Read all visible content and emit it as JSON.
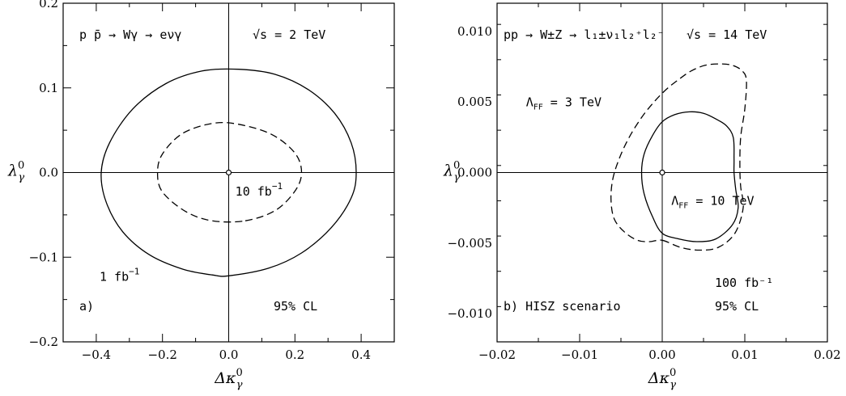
{
  "chart_data": [
    {
      "type": "line",
      "panel_label": "a)",
      "process": "p p̄ → Wγ → eνγ",
      "energy": "√s = 2 TeV",
      "confidence": "95% CL",
      "xlabel": "Δκ",
      "xlabel_sup": "0",
      "xlabel_sub": "γ",
      "ylabel": "λ",
      "ylabel_sup": "0",
      "ylabel_sub": "γ",
      "xlim": [
        -0.5,
        0.5
      ],
      "ylim": [
        -0.2,
        0.2
      ],
      "xticks": [
        "−0.4",
        "−0.2",
        "0.0",
        "0.2",
        "0.4"
      ],
      "xtick_values": [
        -0.4,
        -0.2,
        0.0,
        0.2,
        0.4
      ],
      "yticks": [
        "−0.2",
        "−0.1",
        "0.0",
        "0.1",
        "0.2"
      ],
      "ytick_values": [
        -0.2,
        -0.1,
        0.0,
        0.1,
        0.2
      ],
      "grid": false,
      "series": [
        {
          "name": "1 fb⁻¹",
          "style": "solid",
          "x": [
            0.0,
            0.12,
            0.22,
            0.31,
            0.37,
            0.385,
            0.37,
            0.32,
            0.24,
            0.14,
            0.03,
            -0.08,
            -0.19,
            -0.29,
            -0.36,
            -0.385,
            -0.37,
            -0.32,
            -0.24,
            -0.14,
            -0.05,
            0.0
          ],
          "y": [
            -0.122,
            -0.113,
            -0.095,
            -0.065,
            -0.03,
            0.0,
            0.035,
            0.07,
            0.098,
            0.116,
            0.122,
            0.12,
            0.105,
            0.075,
            0.035,
            0.0,
            -0.035,
            -0.07,
            -0.097,
            -0.114,
            -0.121,
            -0.122
          ]
        },
        {
          "name": "10 fb⁻¹",
          "style": "dashed",
          "x": [
            0.05,
            0.14,
            0.2,
            0.22,
            0.2,
            0.13,
            0.03,
            -0.05,
            -0.14,
            -0.2,
            -0.215,
            -0.2,
            -0.13,
            -0.05,
            0.05
          ],
          "y": [
            -0.057,
            -0.045,
            -0.022,
            0.0,
            0.023,
            0.045,
            0.057,
            0.058,
            0.046,
            0.022,
            0.0,
            -0.023,
            -0.046,
            -0.057,
            -0.057
          ]
        }
      ],
      "annotations": [
        {
          "text": "1 fb",
          "sup": "−1",
          "x": -0.39,
          "y": -0.128
        },
        {
          "text": "10 fb",
          "sup": "−1",
          "x": 0.02,
          "y": -0.027
        }
      ]
    },
    {
      "type": "line",
      "panel_label": "b) HISZ scenario",
      "process": "pp → W±Z → l₁±ν₁l₂⁺l₂⁻",
      "energy": "√s = 14 TeV",
      "confidence": "95% CL",
      "luminosity": "100 fb⁻¹",
      "xlabel": "Δκ",
      "xlabel_sup": "0",
      "xlabel_sub": "γ",
      "ylabel": "λ",
      "ylabel_sup": "0",
      "ylabel_sub": "γ",
      "xlim": [
        -0.02,
        0.02
      ],
      "ylim": [
        -0.012,
        0.012
      ],
      "xticks": [
        "−0.02",
        "−0.01",
        "0.00",
        "0.01",
        "0.02"
      ],
      "xtick_values": [
        -0.02,
        -0.01,
        0.0,
        0.01,
        0.02
      ],
      "yticks": [
        "−0.010",
        "−0.005",
        "0.000",
        "0.005",
        "0.010"
      ],
      "ytick_values": [
        -0.01,
        -0.005,
        0.0,
        0.005,
        0.01
      ],
      "grid": false,
      "series": [
        {
          "name": "Λ_FF = 10 TeV",
          "style": "solid",
          "x": [
            0.0,
            0.002,
            0.0042,
            0.0065,
            0.0085,
            0.0092,
            0.0089,
            0.0087,
            0.0087,
            0.0086,
            0.0078,
            0.0065,
            0.005,
            0.0033,
            0.0015,
            0.0,
            -0.0012,
            -0.0022,
            -0.0025,
            -0.0022,
            -0.0012,
            0.0
          ],
          "y": [
            -0.0043,
            -0.0047,
            -0.0049,
            -0.0047,
            -0.0037,
            -0.0025,
            -0.0012,
            0.0,
            0.001,
            0.0025,
            0.0033,
            0.0038,
            0.0042,
            0.0043,
            0.0041,
            0.0036,
            0.0026,
            0.0013,
            0.0,
            -0.0015,
            -0.0031,
            -0.0043
          ]
        },
        {
          "name": "Λ_FF = 3 TeV",
          "style": "dashed",
          "x": [
            0.0,
            0.0022,
            0.0045,
            0.0068,
            0.0088,
            0.0098,
            0.0095,
            0.0094,
            0.0095,
            0.01,
            0.0102,
            0.0097,
            0.0085,
            0.007,
            0.0052,
            0.0035,
            0.002,
            0.0005,
            -0.001,
            -0.0025,
            -0.004,
            -0.0052,
            -0.006,
            -0.0062,
            -0.0058,
            -0.0046,
            -0.003,
            -0.0015,
            0.0
          ],
          "y": [
            -0.0048,
            -0.0053,
            -0.0055,
            -0.0053,
            -0.0043,
            -0.0025,
            -0.001,
            0.0005,
            0.0025,
            0.0045,
            0.0065,
            0.0072,
            0.0076,
            0.0077,
            0.0076,
            0.0072,
            0.0066,
            0.0059,
            0.005,
            0.0039,
            0.0025,
            0.001,
            -0.0005,
            -0.002,
            -0.0033,
            -0.0042,
            -0.0048,
            -0.0049,
            -0.0048
          ]
        }
      ],
      "annotations": [
        {
          "text": "Λ",
          "sub": "FF",
          "rest": " = 3 TeV",
          "x": -0.0165,
          "y": 0.0047
        },
        {
          "text": "Λ",
          "sub": "FF",
          "rest": " = 10 TeV",
          "x": 0.0011,
          "y": -0.0023
        }
      ]
    }
  ]
}
